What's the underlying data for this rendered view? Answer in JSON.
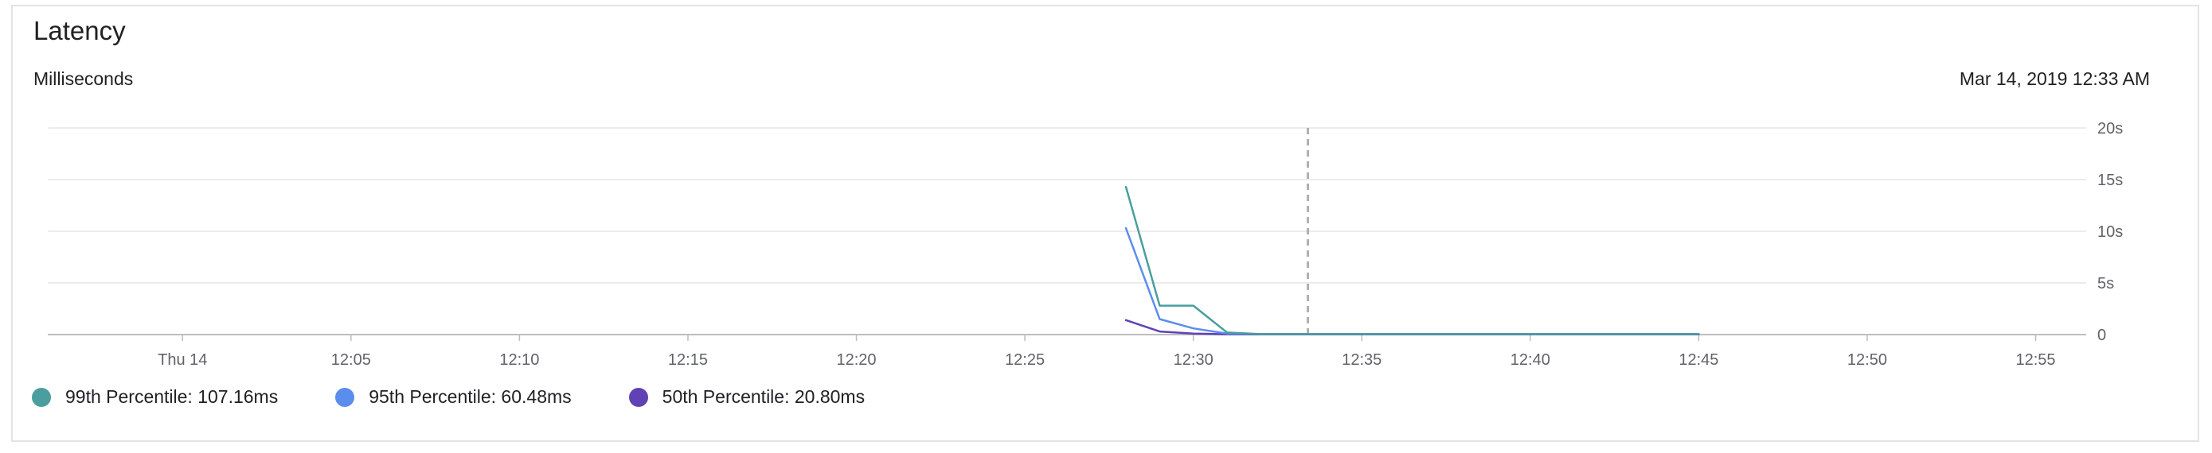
{
  "header": {
    "title": "Latency",
    "subtitle": "Milliseconds",
    "timestamp": "Mar 14, 2019 12:33 AM"
  },
  "legend": [
    {
      "label": "99th Percentile: 107.16ms",
      "color": "#4a9e9e"
    },
    {
      "label": "95th Percentile: 60.48ms",
      "color": "#5b8def"
    },
    {
      "label": "50th Percentile: 20.80ms",
      "color": "#6042b5"
    }
  ],
  "chart_data": {
    "type": "line",
    "title": "Latency",
    "ylabel": "Milliseconds",
    "x_tick_labels": [
      "Thu 14",
      "12:05",
      "12:10",
      "12:15",
      "12:20",
      "12:25",
      "12:30",
      "12:35",
      "12:40",
      "12:45",
      "12:50",
      "12:55"
    ],
    "x_tick_minutes": [
      0,
      5,
      10,
      15,
      20,
      25,
      30,
      35,
      40,
      45,
      50,
      55
    ],
    "xlim_minutes": [
      -4,
      56.5
    ],
    "y_tick_labels": [
      "0",
      "5s",
      "10s",
      "15s",
      "20s"
    ],
    "y_tick_values": [
      0,
      5,
      10,
      15,
      20
    ],
    "ylim": [
      0,
      20
    ],
    "grid": true,
    "cursor_minute": 33.4,
    "series": [
      {
        "name": "99th Percentile",
        "color": "#4a9e9e",
        "points": [
          [
            28,
            14.3
          ],
          [
            29,
            2.8
          ],
          [
            30,
            2.8
          ],
          [
            31,
            0.2
          ],
          [
            32,
            0.05
          ],
          [
            33,
            0.05
          ],
          [
            35,
            0.05
          ],
          [
            40,
            0.05
          ],
          [
            45,
            0.05
          ]
        ]
      },
      {
        "name": "95th Percentile",
        "color": "#5b8def",
        "points": [
          [
            28,
            10.3
          ],
          [
            29,
            1.5
          ],
          [
            30,
            0.6
          ],
          [
            31,
            0.1
          ],
          [
            32,
            0.05
          ],
          [
            33,
            0.05
          ],
          [
            35,
            0.05
          ],
          [
            40,
            0.05
          ],
          [
            45,
            0.05
          ]
        ]
      },
      {
        "name": "50th Percentile",
        "color": "#6042b5",
        "points": [
          [
            28,
            1.4
          ],
          [
            29,
            0.3
          ],
          [
            30,
            0.1
          ],
          [
            31,
            0.03
          ],
          [
            32,
            0.02
          ],
          [
            33,
            0.02
          ],
          [
            35,
            0.02
          ],
          [
            40,
            0.02
          ],
          [
            45,
            0.02
          ]
        ]
      }
    ]
  }
}
